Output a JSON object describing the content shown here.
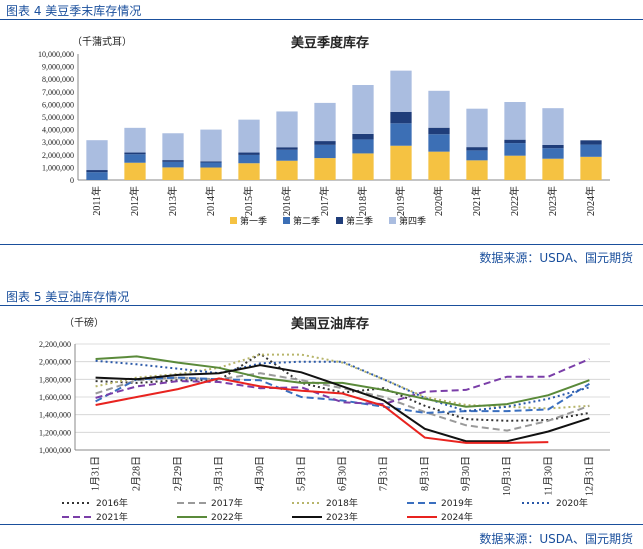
{
  "figures": {
    "fig4_title": "图表 4  美豆季末库存情况",
    "fig5_title": "图表 5  美豆油库存情况",
    "source_text": "数据来源：USDA、国元期货"
  },
  "chart_data": [
    {
      "type": "bar",
      "stacked": true,
      "title": "美豆季度库存",
      "unit": "（千蒲式耳）",
      "categories": [
        "2011年",
        "2012年",
        "2013年",
        "2014年",
        "2015年",
        "2016年",
        "2017年",
        "2018年",
        "2019年",
        "2020年",
        "2021年",
        "2022年",
        "2023年",
        "2024年"
      ],
      "series": [
        {
          "name": "第一季",
          "color": "#f5c242",
          "values": [
            0,
            1370000,
            1000000,
            990000,
            1330000,
            1530000,
            1740000,
            2110000,
            2720000,
            2250000,
            1560000,
            1930000,
            1690000,
            1840000
          ]
        },
        {
          "name": "第二季",
          "color": "#3c6fb5",
          "values": [
            620000,
            670000,
            440000,
            400000,
            660000,
            870000,
            1050000,
            1110000,
            1780000,
            1380000,
            790000,
            1000000,
            830000,
            970000
          ]
        },
        {
          "name": "第三季",
          "color": "#1f3d7a",
          "values": [
            170000,
            140000,
            140000,
            90000,
            190000,
            200000,
            300000,
            440000,
            910000,
            520000,
            260000,
            270000,
            260000,
            340000
          ]
        },
        {
          "name": "第四季",
          "color": "#aabde0",
          "values": [
            2370000,
            1960000,
            2130000,
            2520000,
            2610000,
            2840000,
            3030000,
            3880000,
            3270000,
            2930000,
            3050000,
            2990000,
            2920000,
            0
          ]
        }
      ],
      "yticks": [
        "0",
        "1,000,000",
        "2,000,000",
        "3,000,000",
        "4,000,000",
        "5,000,000",
        "6,000,000",
        "7,000,000",
        "8,000,000",
        "9,000,000",
        "10,000,000"
      ],
      "ylim": [
        0,
        10000000
      ]
    },
    {
      "type": "line",
      "title": "美国豆油库存",
      "unit": "（千磅）",
      "categories": [
        "1月31日",
        "2月28日",
        "2月29日",
        "3月31日",
        "4月30日",
        "5月31日",
        "6月30日",
        "7月31日",
        "8月31日",
        "9月30日",
        "10月31日",
        "11月30日",
        "12月31日"
      ],
      "yticks": [
        "1,000,000",
        "1,200,000",
        "1,400,000",
        "1,600,000",
        "1,800,000",
        "2,000,000",
        "2,200,000"
      ],
      "ylim": [
        1000000,
        2200000
      ],
      "series": [
        {
          "name": "2016年",
          "color": "#333333",
          "dash": "2,3",
          "width": 2,
          "values": [
            1780000,
            1760000,
            1790000,
            1790000,
            2090000,
            1760000,
            1650000,
            1700000,
            1500000,
            1350000,
            1330000,
            1340000,
            1420000
          ]
        },
        {
          "name": "2017年",
          "color": "#9a9a9a",
          "dash": "7,4",
          "width": 2,
          "values": [
            1640000,
            1790000,
            1820000,
            1800000,
            1870000,
            1790000,
            1700000,
            1600000,
            1430000,
            1280000,
            1220000,
            1330000,
            1500000
          ]
        },
        {
          "name": "2018年",
          "color": "#b7b56a",
          "dash": "2,3",
          "width": 2,
          "values": [
            1720000,
            1820000,
            1860000,
            1930000,
            2080000,
            2080000,
            1990000,
            1800000,
            1600000,
            1510000,
            1490000,
            1470000,
            1500000
          ]
        },
        {
          "name": "2019年",
          "color": "#3a6fbf",
          "dash": "7,4",
          "width": 2,
          "values": [
            1550000,
            1800000,
            1820000,
            1800000,
            1790000,
            1600000,
            1560000,
            1490000,
            1420000,
            1440000,
            1440000,
            1460000,
            1750000
          ]
        },
        {
          "name": "2020年",
          "color": "#2a58a8",
          "dash": "2,3",
          "width": 2,
          "values": [
            2010000,
            1970000,
            1920000,
            1870000,
            1980000,
            2000000,
            2000000,
            1800000,
            1590000,
            1440000,
            1490000,
            1580000,
            1710000
          ]
        },
        {
          "name": "2021年",
          "color": "#7a3ea8",
          "dash": "7,4",
          "width": 2,
          "values": [
            1590000,
            1720000,
            1780000,
            1770000,
            1700000,
            1710000,
            1540000,
            1520000,
            1660000,
            1680000,
            1830000,
            1830000,
            2030000
          ]
        },
        {
          "name": "2022年",
          "color": "#5a8a3a",
          "dash": "",
          "width": 2,
          "values": [
            2030000,
            2060000,
            1990000,
            1930000,
            1820000,
            1760000,
            1760000,
            1680000,
            1580000,
            1490000,
            1520000,
            1620000,
            1790000
          ]
        },
        {
          "name": "2023年",
          "color": "#111111",
          "dash": "",
          "width": 2,
          "values": [
            1820000,
            1800000,
            1850000,
            1870000,
            1960000,
            1880000,
            1720000,
            1560000,
            1240000,
            1100000,
            1100000,
            1210000,
            1360000
          ]
        },
        {
          "name": "2024年",
          "color": "#e8231f",
          "dash": "",
          "width": 2,
          "values": [
            1510000,
            1600000,
            1690000,
            1810000,
            1720000,
            1670000,
            1640000,
            1500000,
            1140000,
            1080000,
            1080000,
            1090000,
            null
          ]
        }
      ]
    }
  ]
}
